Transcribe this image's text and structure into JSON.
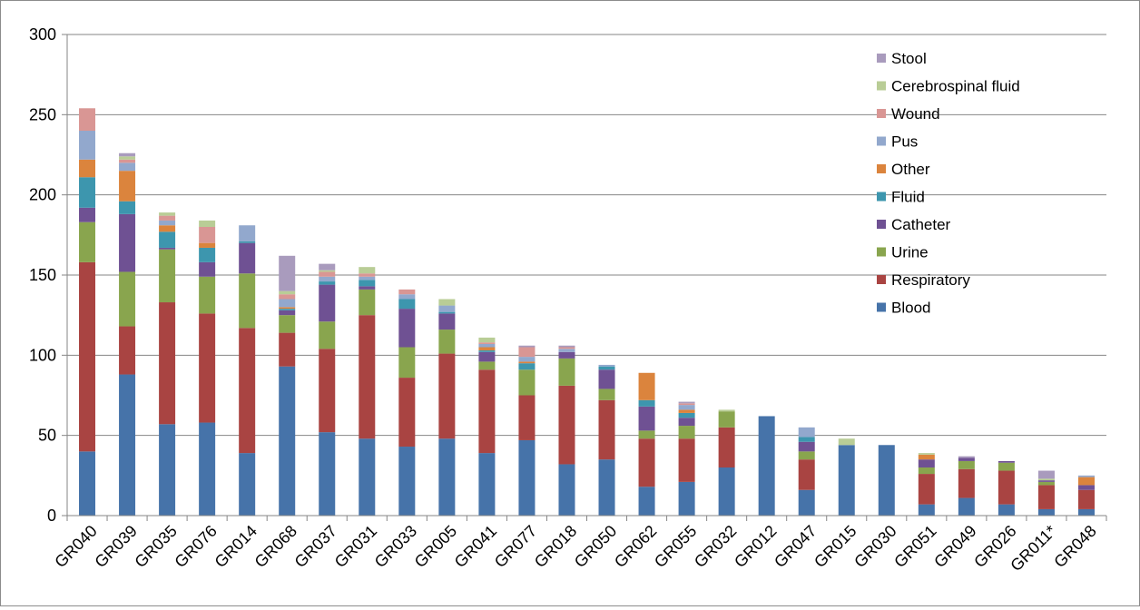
{
  "chart_data": {
    "type": "bar",
    "stacked": true,
    "ylim": [
      0,
      300
    ],
    "yticks": [
      0,
      50,
      100,
      150,
      200,
      250,
      300
    ],
    "grid": true,
    "legend_position": "top-right",
    "categories": [
      "GR040",
      "GR039",
      "GR035",
      "GR076",
      "GR014",
      "GR068",
      "GR037",
      "GR031",
      "GR033",
      "GR005",
      "GR041",
      "GR077",
      "GR018",
      "GR050",
      "GR062",
      "GR055",
      "GR032",
      "GR012",
      "GR047",
      "GR015",
      "GR030",
      "GR051",
      "GR049",
      "GR026",
      "GR011*",
      "GR048"
    ],
    "series": [
      {
        "name": "Blood",
        "color": "#4673A9",
        "values": [
          40,
          88,
          57,
          58,
          39,
          93,
          52,
          48,
          43,
          48,
          39,
          47,
          32,
          35,
          18,
          21,
          30,
          62,
          16,
          44,
          44,
          7,
          11,
          7,
          4,
          4
        ]
      },
      {
        "name": "Respiratory",
        "color": "#A94442",
        "values": [
          118,
          30,
          76,
          68,
          78,
          21,
          52,
          77,
          43,
          53,
          52,
          28,
          49,
          37,
          30,
          27,
          25,
          0,
          19,
          0,
          0,
          19,
          18,
          21,
          15,
          12
        ]
      },
      {
        "name": "Urine",
        "color": "#89A54E",
        "values": [
          25,
          34,
          33,
          23,
          34,
          11,
          17,
          16,
          19,
          15,
          5,
          16,
          17,
          7,
          5,
          8,
          10,
          0,
          5,
          0,
          0,
          4,
          5,
          5,
          2,
          0
        ]
      },
      {
        "name": "Catheter",
        "color": "#6F5193",
        "values": [
          9,
          36,
          1,
          9,
          19,
          3,
          23,
          2,
          24,
          10,
          6,
          0,
          4,
          12,
          15,
          5,
          0,
          0,
          6,
          0,
          0,
          5,
          2,
          1,
          1,
          3
        ]
      },
      {
        "name": "Fluid",
        "color": "#3D96AE",
        "values": [
          19,
          8,
          10,
          9,
          1,
          1,
          2,
          4,
          6,
          1,
          1,
          4,
          0,
          2,
          4,
          3,
          0,
          0,
          3,
          0,
          0,
          0,
          0,
          0,
          0,
          0
        ]
      },
      {
        "name": "Other",
        "color": "#DB843D",
        "values": [
          11,
          19,
          4,
          3,
          0,
          1,
          0,
          0,
          0,
          0,
          2,
          1,
          0,
          0,
          17,
          2,
          0,
          0,
          0,
          0,
          0,
          3,
          0,
          0,
          0,
          5
        ]
      },
      {
        "name": "Pus",
        "color": "#92A8CD",
        "values": [
          18,
          5,
          3,
          0,
          10,
          5,
          3,
          2,
          3,
          4,
          2,
          3,
          2,
          1,
          0,
          3,
          0,
          0,
          6,
          0,
          0,
          0,
          0,
          0,
          0,
          1
        ]
      },
      {
        "name": "Wound",
        "color": "#D99694",
        "values": [
          14,
          2,
          3,
          10,
          0,
          3,
          3,
          2,
          3,
          0,
          1,
          6,
          1,
          0,
          0,
          1,
          0,
          0,
          0,
          0,
          0,
          0,
          0,
          0,
          0,
          0
        ]
      },
      {
        "name": "Cerebrospinal fluid",
        "color": "#B9CD96",
        "values": [
          0,
          2,
          2,
          4,
          0,
          2,
          1,
          4,
          0,
          4,
          3,
          0,
          0,
          0,
          0,
          0,
          1,
          0,
          0,
          4,
          0,
          1,
          0,
          0,
          1,
          0
        ]
      },
      {
        "name": "Stool",
        "color": "#A99BBD",
        "values": [
          0,
          2,
          0,
          0,
          0,
          22,
          4,
          0,
          0,
          0,
          0,
          1,
          1,
          0,
          0,
          1,
          0,
          0,
          0,
          0,
          0,
          0,
          1,
          0,
          5,
          0
        ]
      }
    ]
  }
}
